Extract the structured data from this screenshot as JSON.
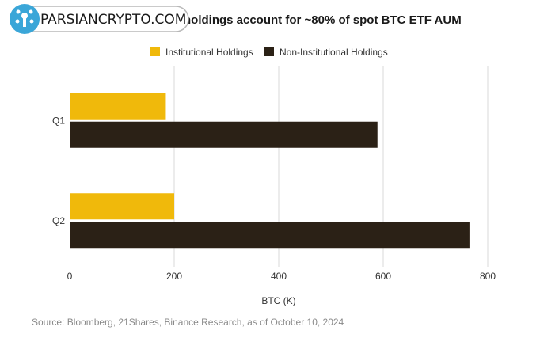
{
  "watermark": {
    "text": "PARSIANCRYPTO.COM"
  },
  "chart_data": {
    "type": "bar",
    "orientation": "horizontal",
    "title": "holdings account for ~80% of spot BTC ETF AUM",
    "categories": [
      "Q1",
      "Q2"
    ],
    "series": [
      {
        "name": "Institutional Holdings",
        "color": "#F0B90B",
        "values": [
          184,
          200
        ]
      },
      {
        "name": "Non-Institutional Holdings",
        "color": "#2B2116",
        "values": [
          589,
          765
        ]
      }
    ],
    "xlabel": "BTC (K)",
    "ylabel": "",
    "xlim": [
      0,
      800
    ],
    "xticks": [
      "0",
      "200",
      "400",
      "600",
      "800"
    ],
    "grid": true,
    "legend_position": "top-center",
    "source": "Source: Bloomberg, 21Shares, Binance Research, as of October 10, 2024"
  }
}
